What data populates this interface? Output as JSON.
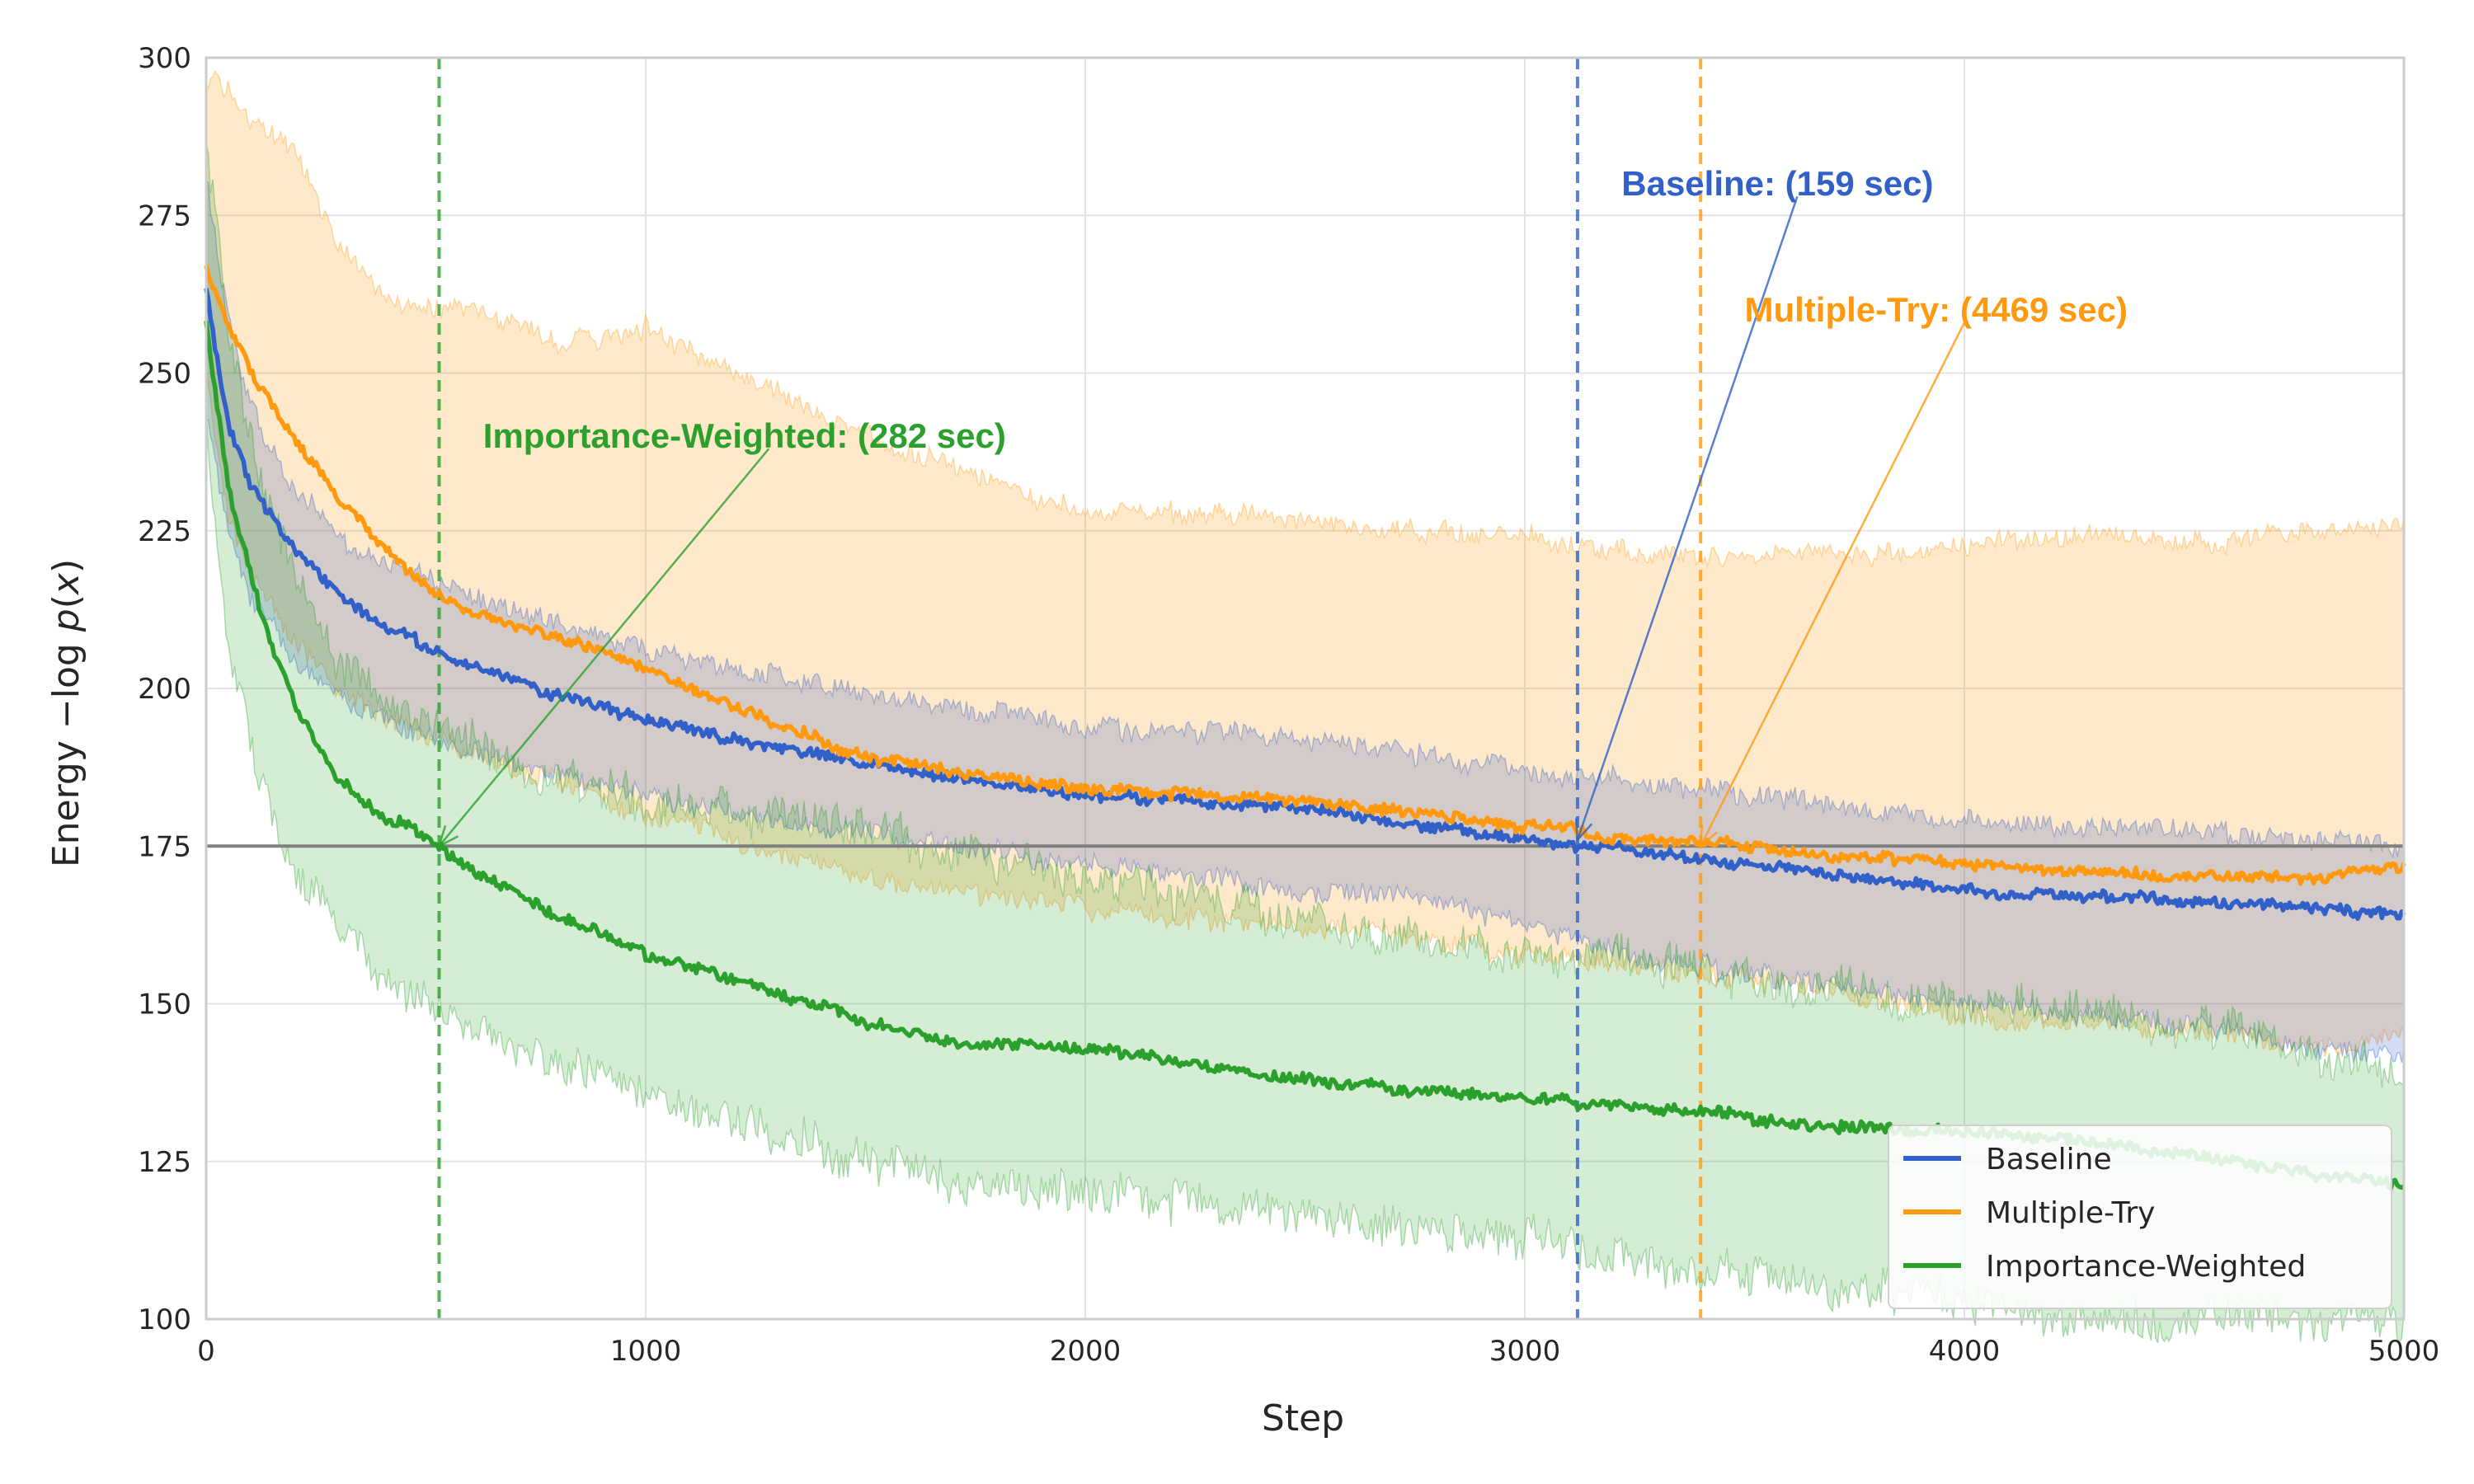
{
  "chart_data": {
    "type": "line",
    "title": "",
    "xlabel": "Step",
    "ylabel": "Energy −log p(x)",
    "ylabel_parts": {
      "prefix": "Energy −log ",
      "p": "p",
      "open": "(",
      "x": "x",
      "close": ")"
    },
    "xlim": [
      0,
      5000
    ],
    "ylim": [
      100,
      300
    ],
    "xticks": [
      0,
      1000,
      2000,
      3000,
      4000,
      5000
    ],
    "yticks": [
      100,
      125,
      150,
      175,
      200,
      225,
      250,
      275,
      300
    ],
    "xtick_labels": [
      "0",
      "1000",
      "2000",
      "3000",
      "4000",
      "5000"
    ],
    "ytick_labels": [
      "100",
      "125",
      "150",
      "175",
      "200",
      "225",
      "250",
      "275",
      "300"
    ],
    "grid": true,
    "legend_position": "bottom-right",
    "reference_line": {
      "y": 175,
      "color": "#808080"
    },
    "series": [
      {
        "name": "Baseline",
        "color": "#3060c8",
        "x": [
          0,
          25,
          50,
          100,
          200,
          300,
          400,
          500,
          600,
          800,
          1000,
          1200,
          1500,
          1800,
          2000,
          2300,
          2500,
          2800,
          3000,
          3100,
          3200,
          3500,
          3800,
          4000,
          4300,
          4600,
          4800,
          5000
        ],
        "mean": [
          263,
          252,
          242,
          232,
          222,
          215,
          210,
          207,
          204,
          199,
          195,
          192,
          188,
          185,
          183,
          182,
          181,
          178,
          176,
          175,
          175,
          172,
          170,
          168,
          167,
          166,
          165,
          164
        ],
        "low": [
          245,
          235,
          225,
          215,
          205,
          198,
          195,
          192,
          190,
          186,
          183,
          180,
          177,
          174,
          172,
          170,
          168,
          166,
          163,
          160,
          158,
          155,
          152,
          150,
          148,
          146,
          143,
          142
        ],
        "high": [
          282,
          270,
          258,
          245,
          232,
          224,
          220,
          218,
          215,
          210,
          206,
          203,
          199,
          196,
          194,
          193,
          192,
          189,
          187,
          186,
          186,
          183,
          181,
          179,
          178,
          177,
          176,
          175
        ]
      },
      {
        "name": "Multiple-Try",
        "color": "#ff9a10",
        "x": [
          0,
          25,
          50,
          100,
          200,
          300,
          400,
          500,
          600,
          800,
          1000,
          1200,
          1500,
          1800,
          2000,
          2300,
          2500,
          2800,
          3000,
          3100,
          3200,
          3400,
          3600,
          3800,
          4000,
          4300,
          4600,
          4800,
          5000
        ],
        "mean": [
          266,
          262,
          258,
          250,
          240,
          230,
          223,
          216,
          212,
          208,
          203,
          197,
          189,
          186,
          184,
          183,
          182,
          180,
          178,
          178,
          176,
          176,
          174,
          173,
          172,
          171,
          170,
          170,
          172
        ],
        "low": [
          250,
          238,
          228,
          218,
          208,
          200,
          196,
          193,
          190,
          185,
          180,
          176,
          170,
          167,
          165,
          163,
          162,
          160,
          158,
          157,
          156,
          155,
          153,
          150,
          148,
          147,
          145,
          143,
          145
        ],
        "high": [
          296,
          296,
          296,
          290,
          285,
          270,
          262,
          260,
          260,
          255,
          257,
          250,
          240,
          232,
          228,
          228,
          226,
          225,
          224,
          223,
          222,
          220,
          222,
          221,
          223,
          224,
          223,
          225,
          226
        ]
      },
      {
        "name": "Importance-Weighted",
        "color": "#2ca02c",
        "x": [
          0,
          25,
          50,
          100,
          150,
          200,
          300,
          400,
          500,
          530,
          600,
          800,
          1000,
          1200,
          1500,
          1700,
          2000,
          2300,
          2500,
          2800,
          3000,
          3200,
          3400,
          3600,
          3800,
          4000,
          4300,
          4600,
          4800,
          5000
        ],
        "mean": [
          258,
          245,
          232,
          218,
          207,
          198,
          186,
          180,
          177,
          175,
          171,
          164,
          158,
          154,
          147,
          144,
          143,
          140,
          138,
          136,
          135,
          134,
          133,
          131,
          130,
          130,
          128,
          125,
          123,
          121
        ],
        "low": [
          240,
          222,
          208,
          190,
          180,
          172,
          162,
          155,
          150,
          149,
          146,
          140,
          135,
          131,
          125,
          122,
          120,
          118,
          116,
          114,
          113,
          110,
          108,
          106,
          104,
          102,
          100,
          100,
          100,
          100
        ],
        "high": [
          285,
          272,
          258,
          240,
          228,
          218,
          205,
          198,
          195,
          194,
          192,
          185,
          182,
          180,
          178,
          174,
          170,
          166,
          163,
          160,
          158,
          158,
          155,
          153,
          152,
          150,
          148,
          146,
          141,
          139
        ]
      }
    ],
    "vertical_lines": [
      {
        "series": "Importance-Weighted",
        "x": 530,
        "color": "#2ca02c"
      },
      {
        "series": "Baseline",
        "x": 3120,
        "color": "#3060c8"
      },
      {
        "series": "Multiple-Try",
        "x": 3400,
        "color": "#ff9a10"
      }
    ],
    "annotations": [
      {
        "text": "Importance-Weighted: (282 sec)",
        "color": "#2ca02c",
        "point": [
          530,
          175
        ],
        "text_at": [
          630,
          240
        ],
        "arrow_from": [
          1280,
          238
        ]
      },
      {
        "text": "Baseline: (159 sec)",
        "color": "#3060c8",
        "point": [
          3120,
          176
        ],
        "text_at": [
          3220,
          280
        ],
        "arrow_from": [
          3620,
          278
        ]
      },
      {
        "text": "Multiple-Try: (4469 sec)",
        "color": "#ff9a10",
        "point": [
          3400,
          175
        ],
        "text_at": [
          3500,
          260
        ],
        "arrow_from": [
          4000,
          258
        ]
      }
    ]
  }
}
